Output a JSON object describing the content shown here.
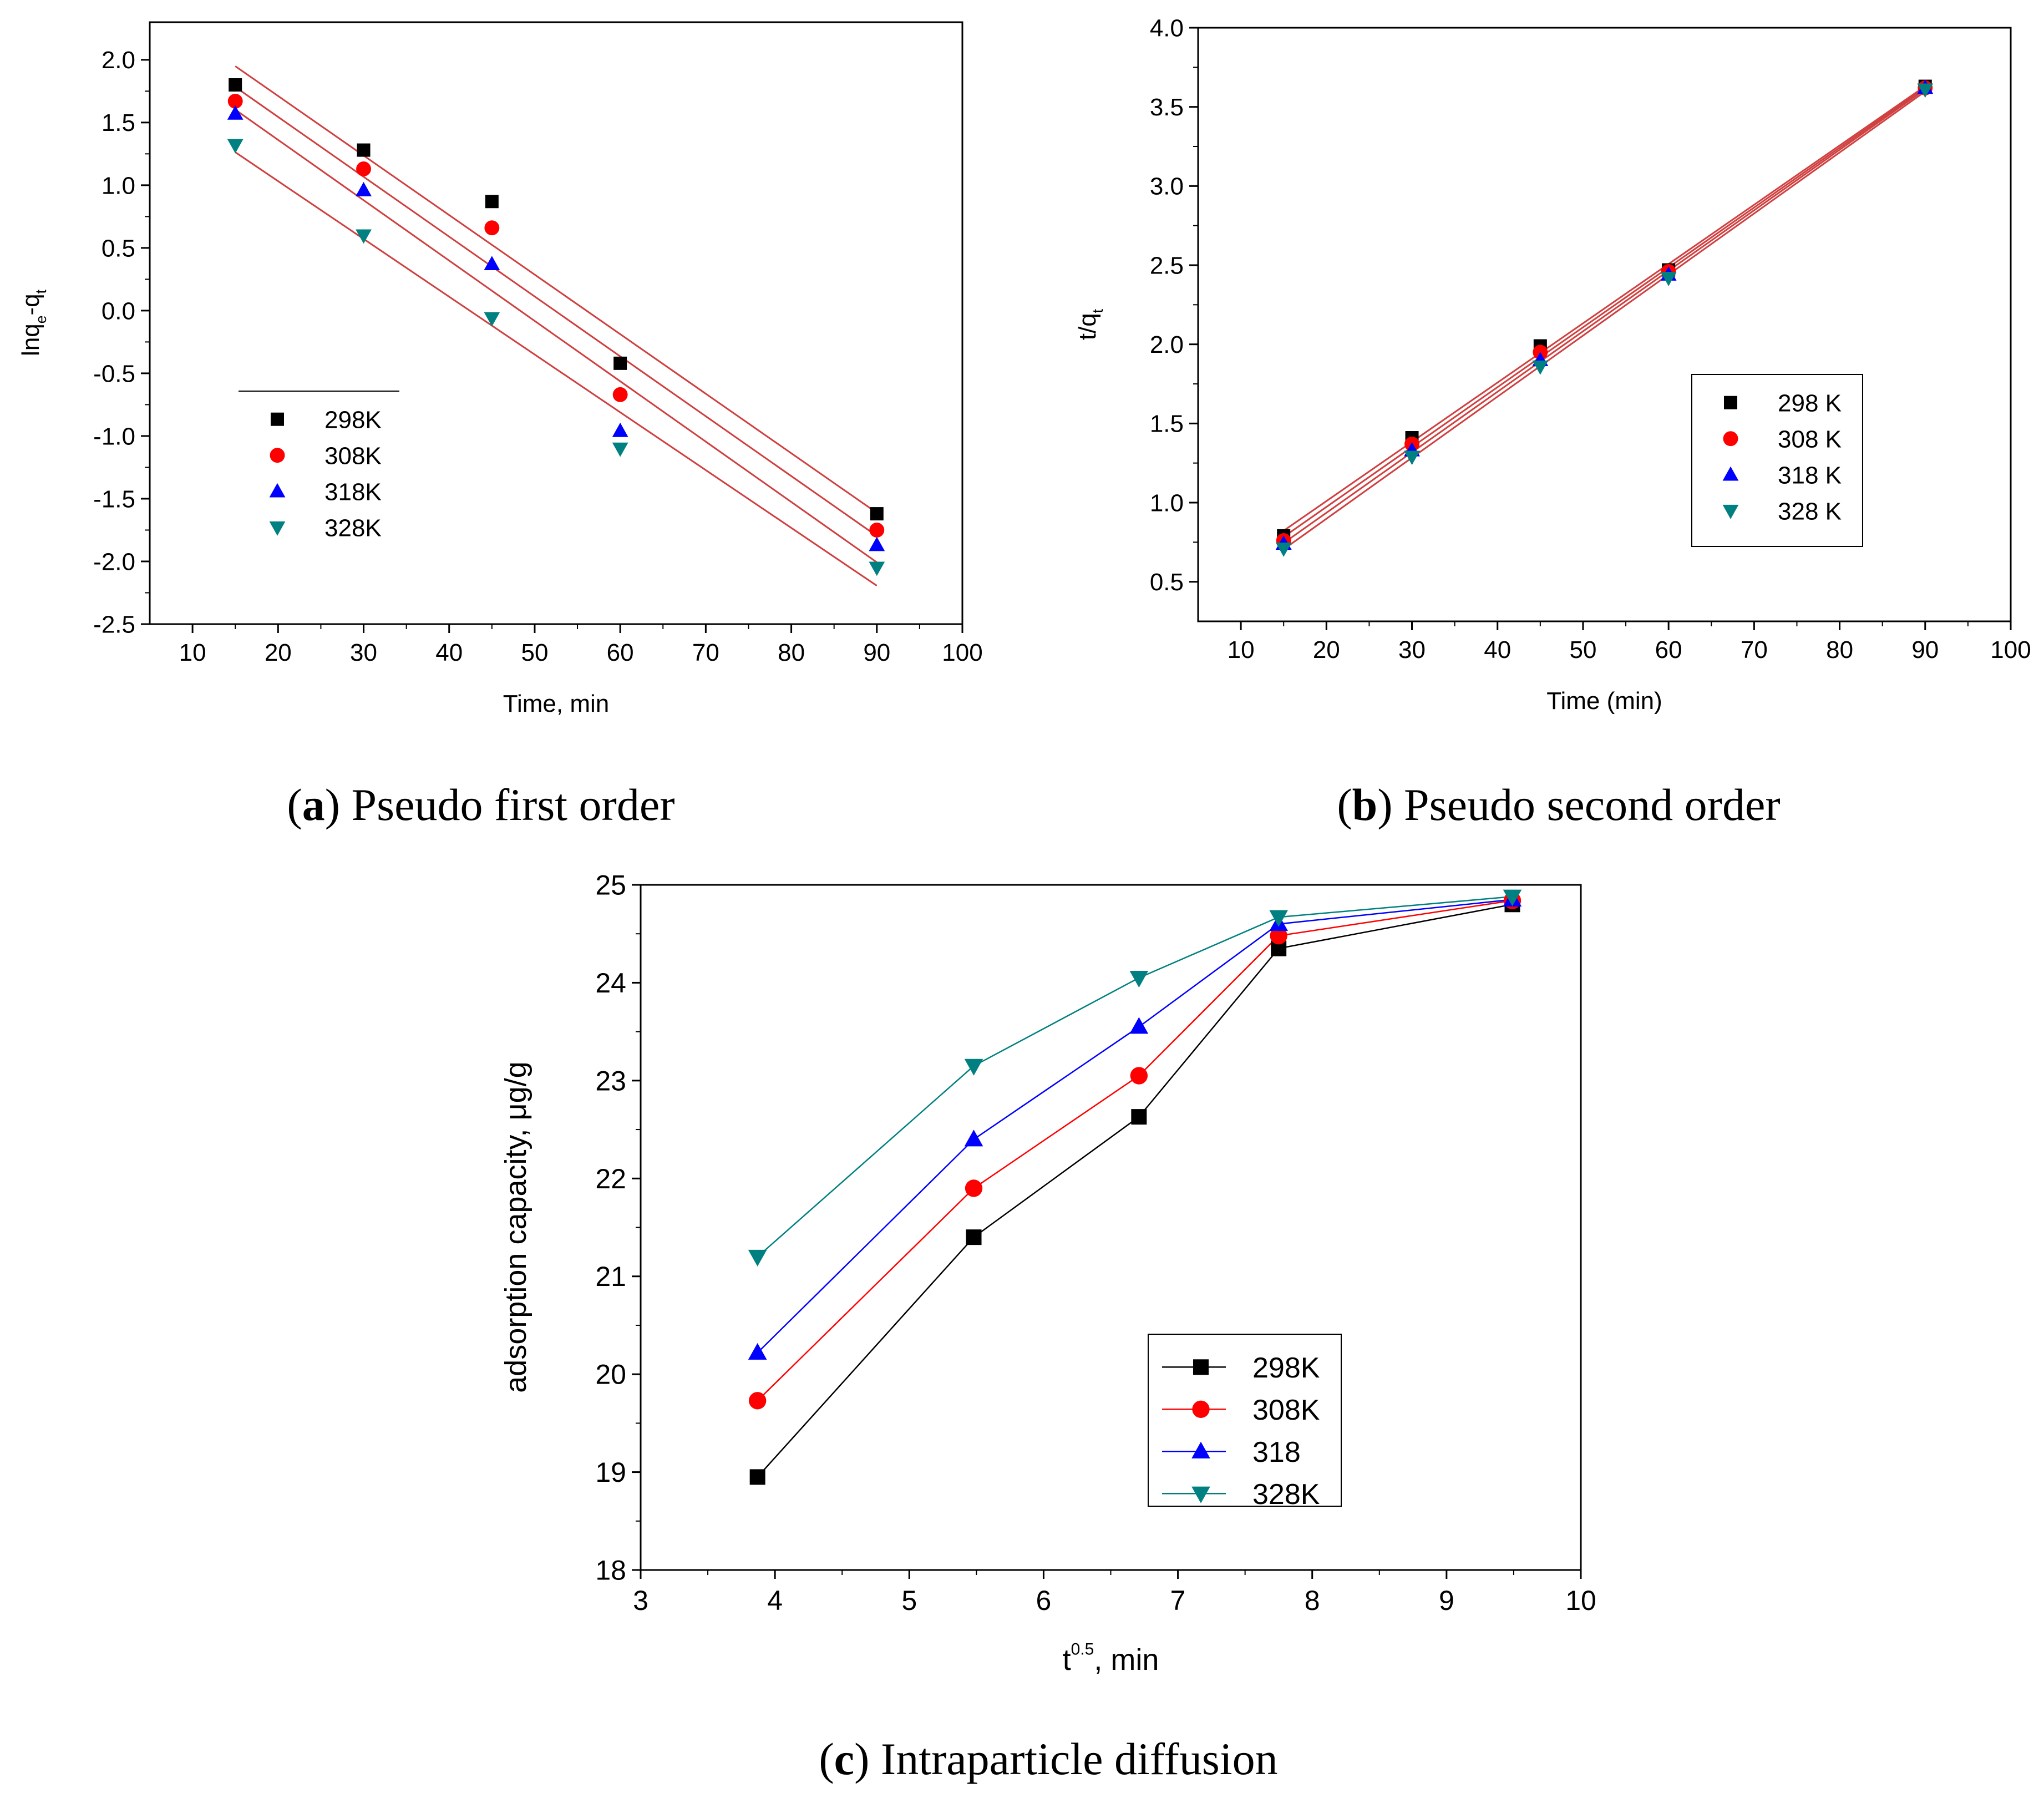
{
  "colors": {
    "s298": "#000000",
    "s308": "#ff0000",
    "s318": "#0000ff",
    "s328": "#008080",
    "fit_line": "#d04040"
  },
  "captions": {
    "a": {
      "letter": "a",
      "text": " Pseudo first order"
    },
    "b": {
      "letter": "b",
      "text": " Pseudo second order"
    },
    "c": {
      "letter": "c",
      "text": " Intraparticle diffusion"
    }
  },
  "chart_data": [
    {
      "id": "a",
      "type": "scatter",
      "title": "",
      "xlabel": "Time, min",
      "ylabel": {
        "main": "lnq",
        "sub1": "e",
        "mid": "-q",
        "sub2": "t"
      },
      "xlim": [
        5,
        100
      ],
      "ylim": [
        -2.5,
        2.3
      ],
      "xticks": [
        10,
        20,
        30,
        40,
        50,
        60,
        70,
        80,
        90,
        100
      ],
      "yticks": [
        -2.5,
        -2.0,
        -1.5,
        -1.0,
        -0.5,
        0.0,
        0.5,
        1.0,
        1.5,
        2.0
      ],
      "ytick_labels": [
        "-2.5",
        "-2.0",
        "-1.5",
        "-1.0",
        "-0.5",
        "0.0",
        "0.5",
        "1.0",
        "1.5",
        "2.0"
      ],
      "legend_position": "center-left",
      "fit_lines": true,
      "x": [
        15,
        30,
        45,
        60,
        90
      ],
      "series": [
        {
          "name": "298K",
          "marker": "square",
          "color_key": "s298",
          "values": [
            1.8,
            1.28,
            0.87,
            -0.42,
            -1.62
          ]
        },
        {
          "name": "308K",
          "marker": "circle",
          "color_key": "s308",
          "values": [
            1.67,
            1.13,
            0.66,
            -0.67,
            -1.75
          ]
        },
        {
          "name": "318K",
          "marker": "triangle-up",
          "color_key": "s318",
          "values": [
            1.57,
            0.96,
            0.37,
            -0.96,
            -1.87
          ]
        },
        {
          "name": "328K",
          "marker": "triangle-down",
          "color_key": "s328",
          "values": [
            1.32,
            0.6,
            -0.06,
            -1.1,
            -2.05
          ]
        }
      ]
    },
    {
      "id": "b",
      "type": "scatter",
      "title": "",
      "xlabel": "Time (min)",
      "ylabel": {
        "main": "t/q",
        "sub1": "",
        "mid": "",
        "sub2": "t"
      },
      "xlim": [
        5,
        100
      ],
      "ylim": [
        0.25,
        4.0
      ],
      "xticks": [
        10,
        20,
        30,
        40,
        50,
        60,
        70,
        80,
        90,
        100
      ],
      "yticks": [
        0.5,
        1.0,
        1.5,
        2.0,
        2.5,
        3.0,
        3.5,
        4.0
      ],
      "ytick_labels": [
        "0.5",
        "1.0",
        "1.5",
        "2.0",
        "2.5",
        "3.0",
        "3.5",
        "4.0"
      ],
      "legend_position": "center-right",
      "fit_lines": true,
      "x": [
        15,
        30,
        45,
        60,
        90
      ],
      "series": [
        {
          "name": "298 K",
          "marker": "square",
          "color_key": "s298",
          "values": [
            0.79,
            1.41,
            1.99,
            2.47,
            3.63
          ]
        },
        {
          "name": "308 K",
          "marker": "circle",
          "color_key": "s308",
          "values": [
            0.76,
            1.37,
            1.95,
            2.46,
            3.62
          ]
        },
        {
          "name": "318 K",
          "marker": "triangle-up",
          "color_key": "s318",
          "values": [
            0.74,
            1.33,
            1.9,
            2.44,
            3.62
          ]
        },
        {
          "name": "328 K",
          "marker": "triangle-down",
          "color_key": "s328",
          "values": [
            0.71,
            1.29,
            1.86,
            2.42,
            3.61
          ]
        }
      ]
    },
    {
      "id": "c",
      "type": "line",
      "title": "",
      "xlabel": "t^0.5, min",
      "ylabel": "adsorption capacity, μg/g",
      "xlabel_parts": {
        "base": "t",
        "sup": "0.5",
        "rest": ", min"
      },
      "xlim": [
        3,
        10
      ],
      "ylim": [
        18,
        25
      ],
      "xticks": [
        3,
        4,
        5,
        6,
        7,
        8,
        9,
        10
      ],
      "yticks": [
        18,
        19,
        20,
        21,
        22,
        23,
        24,
        25
      ],
      "ytick_labels": [
        "18",
        "19",
        "20",
        "21",
        "22",
        "23",
        "24",
        "25"
      ],
      "legend_position": "center-right",
      "fit_lines": false,
      "x": [
        3.87,
        5.48,
        6.71,
        7.75,
        9.49
      ],
      "series": [
        {
          "name": "298K",
          "marker": "square",
          "color_key": "s298",
          "values": [
            18.95,
            21.4,
            22.63,
            24.35,
            24.8
          ]
        },
        {
          "name": "308K",
          "marker": "circle",
          "color_key": "s308",
          "values": [
            19.73,
            21.9,
            23.05,
            24.48,
            24.84
          ]
        },
        {
          "name": "318",
          "marker": "triangle-up",
          "color_key": "s318",
          "values": [
            20.22,
            22.4,
            23.55,
            24.6,
            24.85
          ]
        },
        {
          "name": "328K",
          "marker": "triangle-down",
          "color_key": "s328",
          "values": [
            21.2,
            23.15,
            24.05,
            24.67,
            24.88
          ]
        }
      ]
    }
  ]
}
